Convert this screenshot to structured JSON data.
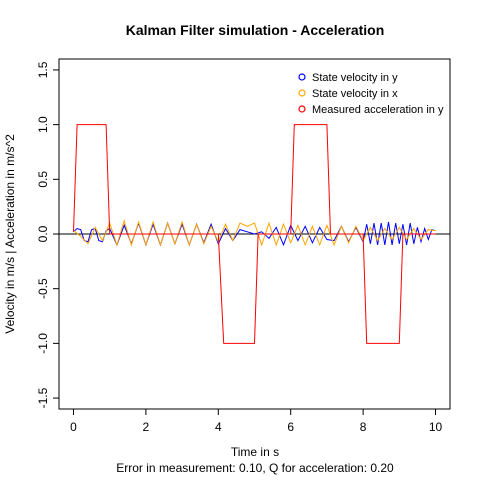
{
  "chart_data": {
    "type": "line",
    "title": "Kalman Filter simulation - Acceleration",
    "xlabel": "Time in s",
    "subtitle": "Error in measurement: 0.10, Q for acceleration: 0.20",
    "ylabel": "Velocity in m/s | Acceleration in m/s^2",
    "xlim": [
      -0.4,
      10.4
    ],
    "ylim": [
      -1.6,
      1.6
    ],
    "x_ticks": [
      0,
      2,
      4,
      6,
      8,
      10
    ],
    "y_ticks": [
      -1.5,
      -1.0,
      -0.5,
      0.0,
      0.5,
      1.0,
      1.5
    ],
    "x_tick_labels": [
      "0",
      "2",
      "4",
      "6",
      "8",
      "10"
    ],
    "y_tick_labels": [
      "-1.5",
      "-1.0",
      "-0.5",
      "0.0",
      "0.5",
      "1.0",
      "1.5"
    ],
    "reference_line": {
      "y": 0,
      "color": "#000000"
    },
    "legend_position": "top-right",
    "series": [
      {
        "name": "State velocity in y",
        "color": "#0000ff",
        "x": [
          0,
          0.1,
          0.2,
          0.3,
          0.4,
          0.5,
          0.6,
          0.7,
          0.8,
          0.9,
          1.0,
          1.2,
          1.4,
          1.6,
          1.8,
          2.0,
          2.2,
          2.4,
          2.6,
          2.8,
          3.0,
          3.2,
          3.4,
          3.6,
          3.8,
          4.0,
          4.2,
          4.4,
          4.6,
          4.8,
          5.0,
          5.2,
          5.4,
          5.6,
          5.8,
          6.0,
          6.2,
          6.4,
          6.6,
          6.8,
          7.0,
          7.2,
          7.4,
          7.6,
          7.8,
          8.0,
          8.1,
          8.2,
          8.3,
          8.4,
          8.5,
          8.6,
          8.7,
          8.8,
          8.9,
          9.0,
          9.1,
          9.2,
          9.3,
          9.4,
          9.5,
          9.6,
          9.7,
          9.8,
          9.9,
          10.0
        ],
        "y": [
          0.02,
          0.05,
          0.04,
          -0.06,
          -0.07,
          0.04,
          0.05,
          -0.06,
          -0.07,
          0.03,
          0.05,
          -0.1,
          0.08,
          -0.09,
          0.1,
          -0.1,
          0.09,
          -0.1,
          0.1,
          -0.09,
          0.09,
          -0.1,
          0.09,
          -0.08,
          0.09,
          -0.09,
          0.05,
          -0.06,
          0.04,
          0.02,
          0.0,
          0.02,
          -0.04,
          0.06,
          -0.1,
          0.08,
          -0.06,
          0.07,
          -0.08,
          0.06,
          -0.05,
          -0.06,
          0.07,
          -0.07,
          0.06,
          -0.07,
          0.09,
          -0.09,
          0.1,
          -0.1,
          0.1,
          -0.1,
          0.11,
          -0.1,
          0.1,
          -0.09,
          0.09,
          -0.1,
          0.1,
          -0.09,
          0.06,
          -0.07,
          0.05,
          -0.05,
          0.04,
          0.03
        ]
      },
      {
        "name": "State velocity in x",
        "color": "#ffa500",
        "x": [
          0,
          0.2,
          0.4,
          0.6,
          0.8,
          1.0,
          1.2,
          1.4,
          1.6,
          1.8,
          2.0,
          2.2,
          2.4,
          2.6,
          2.8,
          3.0,
          3.2,
          3.4,
          3.6,
          3.8,
          4.0,
          4.2,
          4.4,
          4.6,
          4.8,
          5.0,
          5.2,
          5.4,
          5.6,
          5.8,
          6.0,
          6.2,
          6.4,
          6.6,
          6.8,
          7.0,
          7.2,
          7.4,
          7.6,
          7.8,
          8.0,
          8.2,
          8.4,
          8.6,
          8.8,
          9.0,
          9.2,
          9.4,
          9.6,
          9.8,
          10.0
        ],
        "y": [
          0.03,
          -0.02,
          -0.09,
          0.06,
          -0.06,
          0.1,
          -0.1,
          0.12,
          -0.1,
          0.11,
          -0.1,
          0.11,
          -0.1,
          0.1,
          -0.09,
          0.11,
          -0.1,
          0.09,
          -0.09,
          0.07,
          -0.07,
          0.09,
          -0.06,
          0.1,
          0.07,
          0.1,
          -0.1,
          0.1,
          -0.1,
          0.09,
          -0.08,
          0.08,
          -0.1,
          0.07,
          -0.1,
          0.08,
          -0.1,
          0.07,
          -0.08,
          0.07,
          -0.06,
          0.06,
          -0.06,
          0.05,
          -0.05,
          0.06,
          -0.05,
          0.05,
          -0.05,
          0.04,
          0.03
        ]
      },
      {
        "name": "Measured acceleration in y",
        "color": "#ff0000",
        "x": [
          0,
          0.1,
          0.9,
          1.0,
          4.0,
          4.15,
          5.0,
          5.1,
          6.0,
          6.1,
          7.0,
          7.1,
          8.0,
          8.1,
          9.0,
          9.1,
          10.0
        ],
        "y": [
          0.02,
          1.0,
          1.0,
          0.0,
          0.0,
          -1.0,
          -1.0,
          0.0,
          0.0,
          1.0,
          1.0,
          0.0,
          0.0,
          -1.0,
          -1.0,
          0.0,
          0.0
        ]
      }
    ]
  }
}
